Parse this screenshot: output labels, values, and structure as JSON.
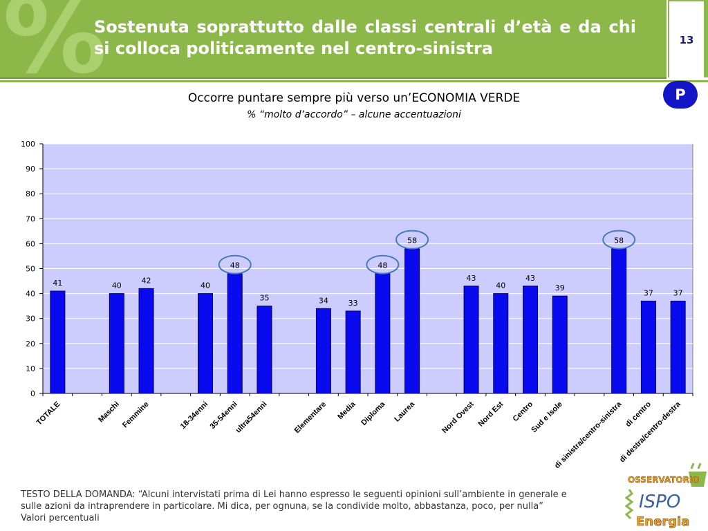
{
  "header": {
    "title": "Sostenuta soprattutto dalle classi centrali d’età e da chi si colloca politicamente nel centro-sinistra",
    "percent_symbol": "%",
    "page_number": "13",
    "badge": "P"
  },
  "chart_heading": {
    "title": "Occorre puntare sempre più verso un’ECONOMIA VERDE",
    "subtitle": "% “molto d’accordo” – alcune accentuazioni"
  },
  "chart_data": {
    "type": "bar",
    "title": "Occorre puntare sempre più verso un’ECONOMIA VERDE",
    "subtitle": "% “molto d’accordo” – alcune accentuazioni",
    "categories": [
      "TOTALE",
      "",
      "Maschi",
      "Femmine",
      "",
      "18-34enni",
      "35-54enni",
      "ultra54enni",
      "",
      "Elementare",
      "Media",
      "Diploma",
      "Laurea",
      "",
      "Nord Ovest",
      "Nord Est",
      "Centro",
      "Sud e Isole",
      "",
      "di sinistra/centro-sinistra",
      "di centro",
      "di destra/centro-destra"
    ],
    "values": [
      41,
      null,
      40,
      42,
      null,
      40,
      48,
      35,
      null,
      34,
      33,
      48,
      58,
      null,
      43,
      40,
      43,
      39,
      null,
      58,
      37,
      37
    ],
    "highlighted": [
      "35-54enni",
      "Diploma",
      "Laurea",
      "di sinistra/centro-sinistra"
    ],
    "ylim": [
      0,
      100
    ],
    "yticks": [
      0,
      10,
      20,
      30,
      40,
      50,
      60,
      70,
      80,
      90,
      100
    ],
    "grid": true,
    "colors": {
      "bar": "#0a0aee",
      "bar_border": "#000066",
      "plot_bg": "#ccccff",
      "highlight_ring": "#4a7ab8"
    }
  },
  "footer": {
    "lines": [
      "TESTO DELLA DOMANDA: “Alcuni intervistati prima di Lei hanno espresso le seguenti opinioni sull’ambiente in generale e",
      "sulle azioni da intraprendere in particolare. Mi dica, per ognuna, se la condivide molto, abbastanza, poco, per nulla”",
      "Valori percentuali"
    ]
  },
  "logo": {
    "line1": "OSSERVATORIO",
    "line2": "ISPO",
    "line3": "Energia"
  }
}
